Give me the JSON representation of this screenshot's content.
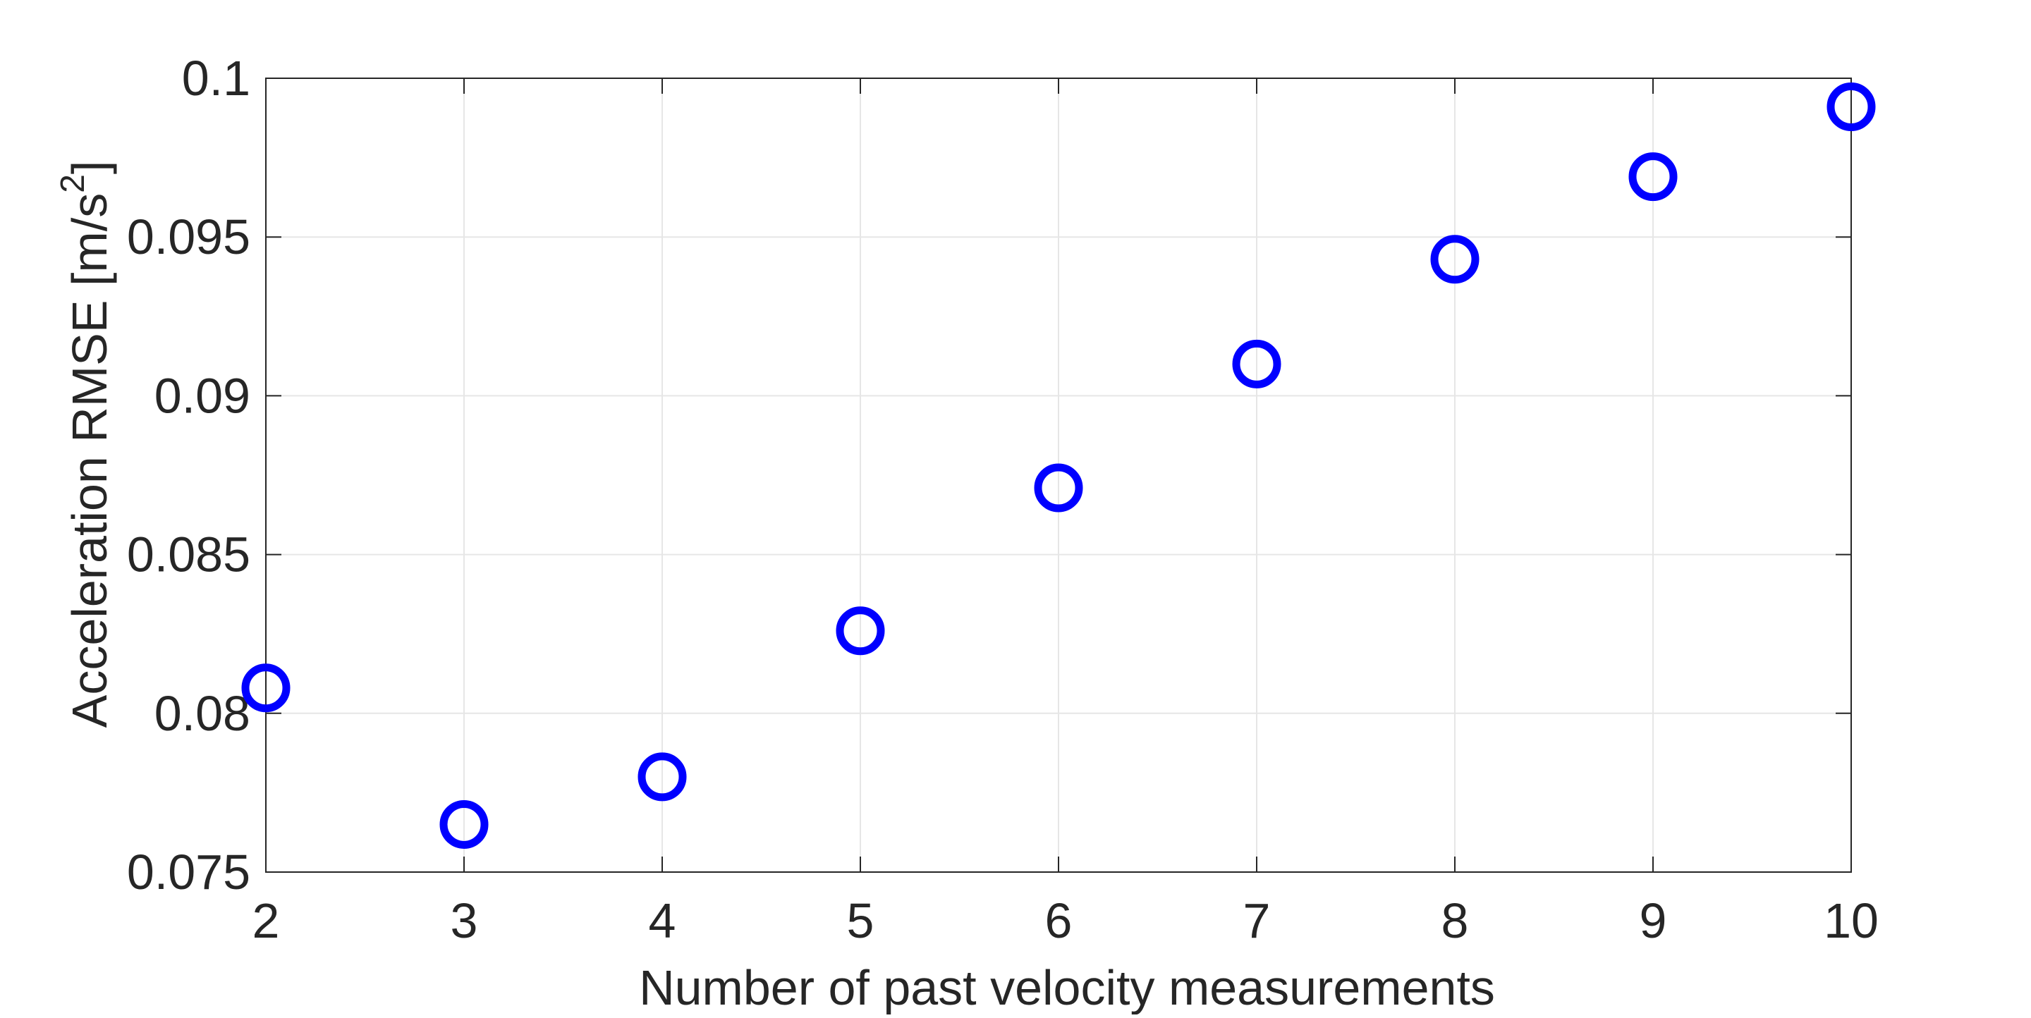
{
  "chart_data": {
    "type": "scatter",
    "xlabel": "Number of past velocity measurements",
    "ylabel_main": "Acceleration RMSE [m/s",
    "ylabel_superscript": "2",
    "ylabel_close": "]",
    "xlim": [
      2,
      10
    ],
    "ylim": [
      0.075,
      0.1
    ],
    "xticks": [
      "2",
      "3",
      "4",
      "5",
      "6",
      "7",
      "8",
      "9",
      "10"
    ],
    "yticks": [
      "0.075",
      "0.08",
      "0.085",
      "0.09",
      "0.095",
      "0.1"
    ],
    "grid": true,
    "marker": "open-circle",
    "marker_color": "#0000ff",
    "x": [
      2,
      3,
      4,
      5,
      6,
      7,
      8,
      9,
      10
    ],
    "y": [
      0.0808,
      0.0765,
      0.078,
      0.0826,
      0.0871,
      0.091,
      0.0943,
      0.0969,
      0.0991
    ]
  }
}
